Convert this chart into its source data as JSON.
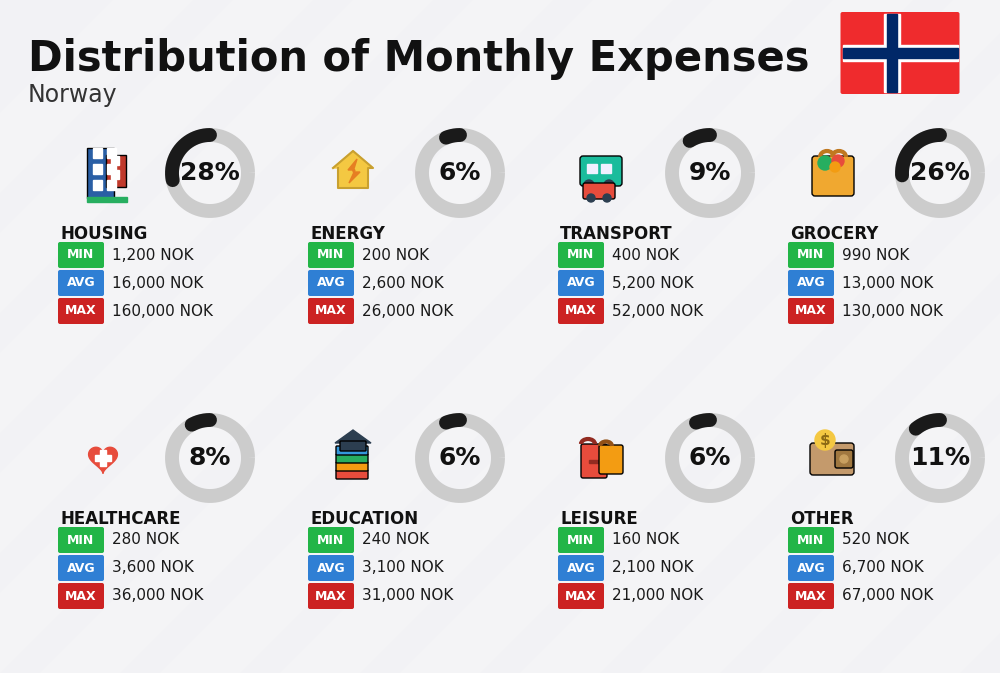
{
  "title": "Distribution of Monthly Expenses",
  "subtitle": "Norway",
  "bg_color": "#f2f2f5",
  "categories": [
    {
      "name": "HOUSING",
      "pct": 28,
      "min": "1,200 NOK",
      "avg": "16,000 NOK",
      "max": "160,000 NOK",
      "row": 0,
      "col": 0
    },
    {
      "name": "ENERGY",
      "pct": 6,
      "min": "200 NOK",
      "avg": "2,600 NOK",
      "max": "26,000 NOK",
      "row": 0,
      "col": 1
    },
    {
      "name": "TRANSPORT",
      "pct": 9,
      "min": "400 NOK",
      "avg": "5,200 NOK",
      "max": "52,000 NOK",
      "row": 0,
      "col": 2
    },
    {
      "name": "GROCERY",
      "pct": 26,
      "min": "990 NOK",
      "avg": "13,000 NOK",
      "max": "130,000 NOK",
      "row": 0,
      "col": 3
    },
    {
      "name": "HEALTHCARE",
      "pct": 8,
      "min": "280 NOK",
      "avg": "3,600 NOK",
      "max": "36,000 NOK",
      "row": 1,
      "col": 0
    },
    {
      "name": "EDUCATION",
      "pct": 6,
      "min": "240 NOK",
      "avg": "3,100 NOK",
      "max": "31,000 NOK",
      "row": 1,
      "col": 1
    },
    {
      "name": "LEISURE",
      "pct": 6,
      "min": "160 NOK",
      "avg": "2,100 NOK",
      "max": "21,000 NOK",
      "row": 1,
      "col": 2
    },
    {
      "name": "OTHER",
      "pct": 11,
      "min": "520 NOK",
      "avg": "6,700 NOK",
      "max": "67,000 NOK",
      "row": 1,
      "col": 3
    }
  ],
  "color_min": "#22b547",
  "color_avg": "#2f7fd4",
  "color_max": "#cc2222",
  "arc_dark": "#1a1a1a",
  "arc_light": "#cccccc",
  "flag_red": "#EF2B2D",
  "flag_blue": "#002868",
  "title_fontsize": 30,
  "subtitle_fontsize": 17,
  "cat_fontsize": 12,
  "val_fontsize": 11,
  "pct_fontsize": 18
}
